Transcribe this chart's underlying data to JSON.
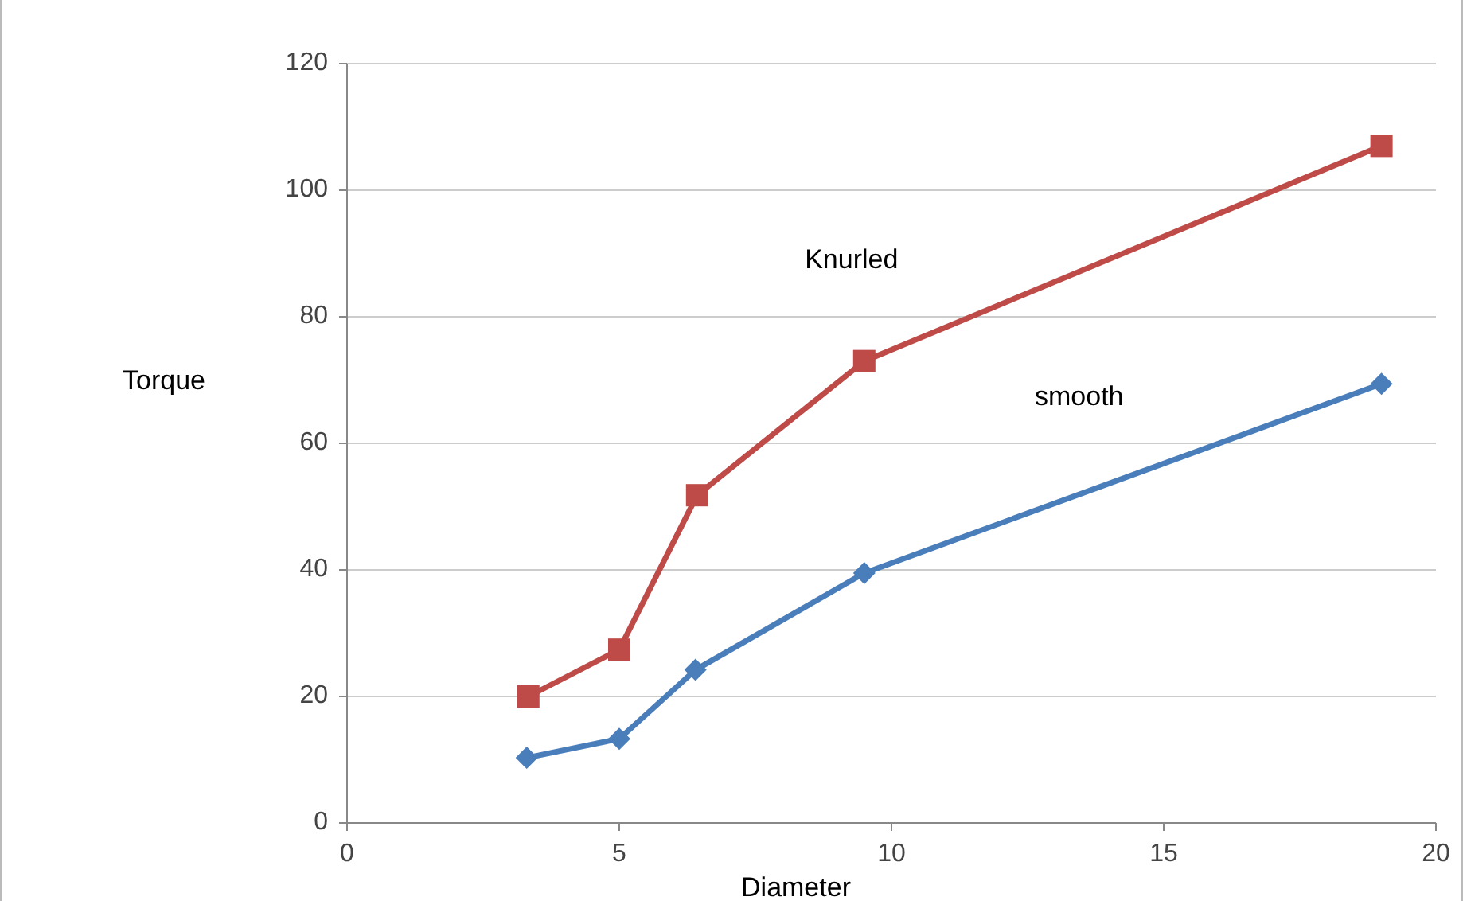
{
  "chart_data": {
    "type": "line",
    "xlabel": "Diameter",
    "ylabel": "Torque",
    "xlim": [
      0,
      20
    ],
    "xticks": [
      0,
      5,
      10,
      15,
      20
    ],
    "ylim": [
      0,
      120
    ],
    "yticks": [
      0,
      20,
      40,
      60,
      80,
      100,
      120
    ],
    "grid": "y",
    "line_style": "solid",
    "series": [
      {
        "name": "Knurled",
        "color": "#be4b48",
        "marker": "square",
        "x": [
          3.33,
          5,
          6.43,
          9.5,
          19
        ],
        "values": [
          20,
          27.4,
          51.8,
          73,
          107
        ]
      },
      {
        "name": "smooth",
        "color": "#4a7ebb",
        "marker": "diamond",
        "x": [
          3.3,
          5,
          6.4,
          9.5,
          19
        ],
        "values": [
          10.3,
          13.3,
          24.2,
          39.5,
          69.4
        ]
      }
    ]
  }
}
